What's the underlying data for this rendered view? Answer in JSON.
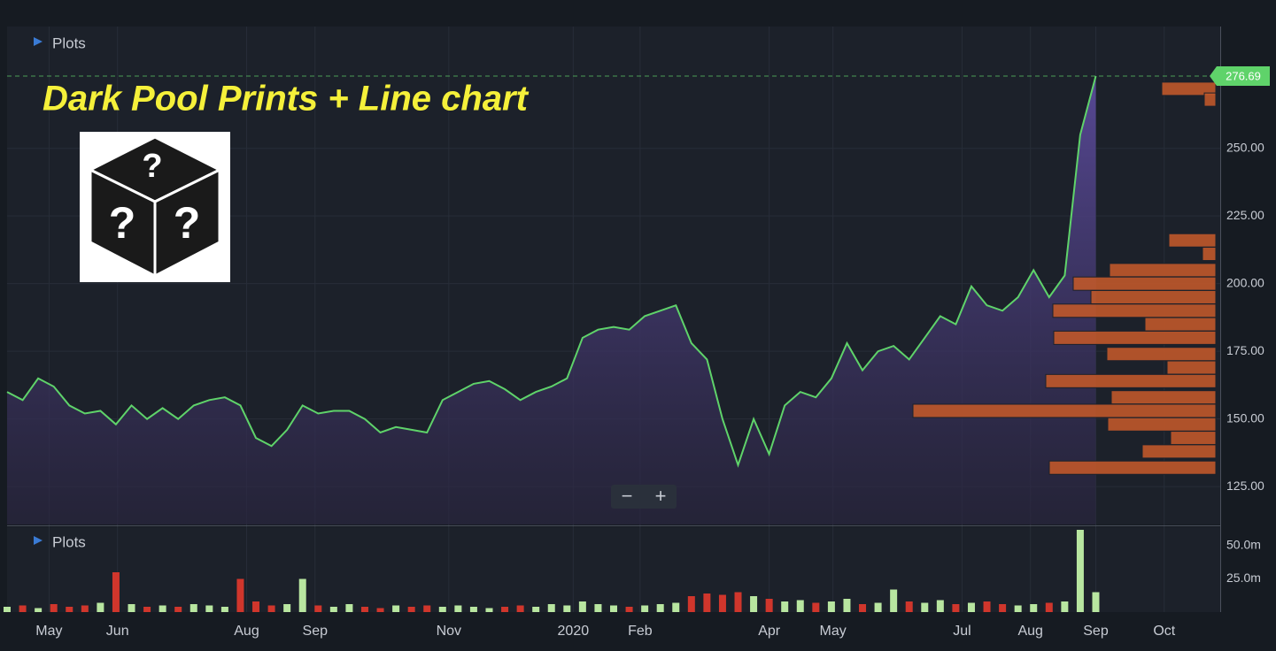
{
  "title": "Dark Pool Prints + Line chart",
  "icon_text": "?",
  "zoom_controls": [
    "−",
    "+"
  ],
  "chart_data": [
    {
      "type": "line",
      "panel_label": "Plots",
      "color": "#5fd36a",
      "fill_color": "#4b3f80",
      "values": [
        160,
        157,
        165,
        162,
        155,
        152,
        153,
        148,
        155,
        150,
        154,
        150,
        155,
        157,
        158,
        155,
        143,
        140,
        146,
        155,
        152,
        153,
        153,
        150,
        145,
        147,
        146,
        145,
        157,
        160,
        163,
        164,
        161,
        157,
        160,
        162,
        165,
        180,
        183,
        184,
        183,
        188,
        190,
        192,
        178,
        172,
        150,
        133,
        150,
        137,
        155,
        160,
        158,
        165,
        178,
        168,
        175,
        177,
        172,
        180,
        188,
        185,
        199,
        192,
        190,
        195,
        205,
        195,
        203,
        255,
        276.69
      ],
      "last_value_label": "276.69",
      "xlim": [
        0,
        78
      ],
      "ylim": [
        111,
        295
      ],
      "yticks": [
        {
          "value": 125,
          "label": "125.00"
        },
        {
          "value": 150,
          "label": "150.00"
        },
        {
          "value": 175,
          "label": "175.00"
        },
        {
          "value": 200,
          "label": "200.00"
        },
        {
          "value": 225,
          "label": "225.00"
        },
        {
          "value": 250,
          "label": "250.00"
        }
      ],
      "grid": true,
      "dark_pool": {
        "color": "#c0582a",
        "levels": [
          272,
          268,
          216,
          211,
          205,
          200,
          195,
          190,
          185,
          180,
          174,
          169,
          164,
          158,
          153,
          148,
          143,
          138,
          132
        ],
        "sizes": [
          61,
          13,
          53,
          15,
          120,
          161,
          141,
          184,
          80,
          183,
          123,
          55,
          192,
          118,
          342,
          122,
          51,
          83,
          188
        ]
      }
    },
    {
      "type": "bar",
      "panel_label": "Plots",
      "up_color": "#b8e6a0",
      "down_color": "#d0362c",
      "values": [
        4,
        5,
        3,
        6,
        4,
        5,
        7,
        30,
        6,
        4,
        5,
        4,
        6,
        5,
        4,
        25,
        8,
        5,
        6,
        25,
        5,
        4,
        6,
        4,
        3,
        5,
        4,
        5,
        4,
        5,
        4,
        3,
        4,
        5,
        4,
        6,
        5,
        8,
        6,
        5,
        4,
        5,
        6,
        7,
        12,
        14,
        13,
        15,
        12,
        10,
        8,
        9,
        7,
        8,
        10,
        6,
        7,
        17,
        8,
        7,
        9,
        6,
        7,
        8,
        6,
        5,
        6,
        7,
        8,
        62,
        15
      ],
      "xlim": [
        0,
        78
      ],
      "ylim": [
        0,
        64
      ],
      "yticks": [
        {
          "value": 25,
          "label": "25.0m"
        },
        {
          "value": 50,
          "label": "50.0m"
        }
      ],
      "xticks": [
        {
          "value": 2.7,
          "label": "May"
        },
        {
          "value": 7.1,
          "label": "Jun"
        },
        {
          "value": 15.4,
          "label": "Aug"
        },
        {
          "value": 19.8,
          "label": "Sep"
        },
        {
          "value": 28.4,
          "label": "Nov"
        },
        {
          "value": 36.4,
          "label": "2020"
        },
        {
          "value": 40.7,
          "label": "Feb"
        },
        {
          "value": 49.0,
          "label": "Apr"
        },
        {
          "value": 53.1,
          "label": "May"
        },
        {
          "value": 61.4,
          "label": "Jul"
        },
        {
          "value": 65.8,
          "label": "Aug"
        },
        {
          "value": 70.0,
          "label": "Sep"
        },
        {
          "value": 74.4,
          "label": "Oct"
        }
      ]
    }
  ]
}
